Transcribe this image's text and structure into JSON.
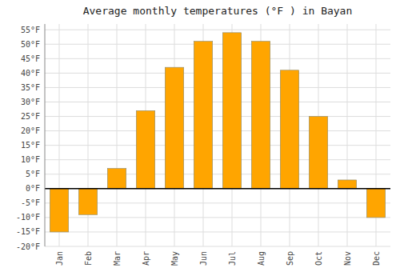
{
  "chart_data": {
    "type": "bar",
    "title": "Average monthly temperatures (°F ) in Bayan",
    "categories": [
      "Jan",
      "Feb",
      "Mar",
      "Apr",
      "May",
      "Jun",
      "Jul",
      "Aug",
      "Sep",
      "Oct",
      "Nov",
      "Dec"
    ],
    "values": [
      -15,
      -9,
      7,
      27,
      42,
      51,
      54,
      51,
      41,
      25,
      3,
      -10
    ],
    "color": "#FFA500",
    "ylim": [
      -20,
      57
    ],
    "yticks": [
      {
        "value": -20,
        "label": "-20°F"
      },
      {
        "value": -15,
        "label": "-15°F"
      },
      {
        "value": -10,
        "label": "-10°F"
      },
      {
        "value": -5,
        "label": "-5°F"
      },
      {
        "value": 0,
        "label": "0°F"
      },
      {
        "value": 5,
        "label": "5°F"
      },
      {
        "value": 10,
        "label": "10°F"
      },
      {
        "value": 15,
        "label": "15°F"
      },
      {
        "value": 20,
        "label": "20°F"
      },
      {
        "value": 25,
        "label": "25°F"
      },
      {
        "value": 30,
        "label": "30°F"
      },
      {
        "value": 35,
        "label": "35°F"
      },
      {
        "value": 40,
        "label": "40°F"
      },
      {
        "value": 45,
        "label": "45°F"
      },
      {
        "value": 50,
        "label": "50°F"
      },
      {
        "value": 55,
        "label": "55°F"
      }
    ],
    "grid": true
  }
}
